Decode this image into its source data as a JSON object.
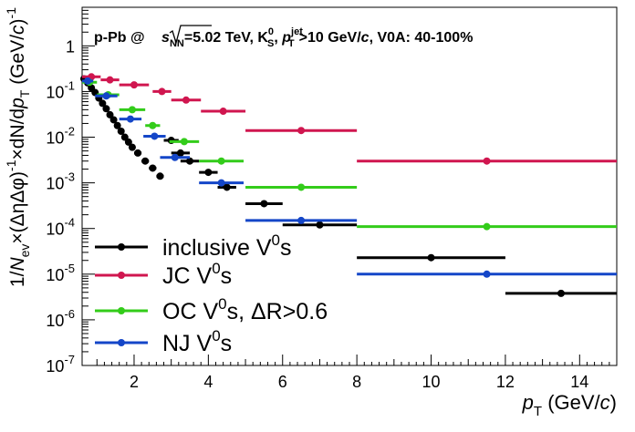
{
  "chart_data": {
    "type": "scatter",
    "title": "",
    "xlabel": "p_T (GeV/c)",
    "ylabel": "1/N_ev×(ΔηΔφ)^-1×dN/dp_T (GeV/c)^-1",
    "xlim": [
      0.6,
      15
    ],
    "ylim": [
      1e-07,
      7
    ],
    "yscale": "log",
    "x_tick_labels": [
      "2",
      "4",
      "6",
      "8",
      "10",
      "12",
      "14"
    ],
    "y_tick_labels": [
      {
        "base": "10",
        "exp": "-7"
      },
      {
        "base": "10",
        "exp": "-6"
      },
      {
        "base": "10",
        "exp": "-5"
      },
      {
        "base": "10",
        "exp": "-4"
      },
      {
        "base": "10",
        "exp": "-3"
      },
      {
        "base": "10",
        "exp": "-2"
      },
      {
        "base": "10",
        "exp": "-1"
      },
      {
        "base": "1",
        "exp": ""
      }
    ],
    "annotation": {
      "prefix": "p-Pb @ ",
      "sqrt_s": "s",
      "sqrt_sub": "NN",
      "energy": "=5.02 TeV, K",
      "k_sup": "0",
      "k_sub": "S",
      "sep": ", ",
      "pt": "p",
      "pt_sup": "jet",
      "pt_sub": "T",
      "cut": ">10 GeV/",
      "c": "c",
      "rest": ", V0A: 40-100%"
    },
    "legend_position": "bottom-left",
    "series": [
      {
        "name": "inclusive V0s",
        "legend": {
          "main": "inclusive V",
          "sup": "0",
          "tail": "s"
        },
        "color": "#000000",
        "points": [
          {
            "x": 0.65,
            "y": 0.19,
            "xerr": 0.05
          },
          {
            "x": 0.75,
            "y": 0.155,
            "xerr": 0.05
          },
          {
            "x": 0.85,
            "y": 0.12,
            "xerr": 0.05
          },
          {
            "x": 0.95,
            "y": 0.095,
            "xerr": 0.05
          },
          {
            "x": 1.05,
            "y": 0.072,
            "xerr": 0.05
          },
          {
            "x": 1.15,
            "y": 0.055,
            "xerr": 0.05
          },
          {
            "x": 1.25,
            "y": 0.042,
            "xerr": 0.05
          },
          {
            "x": 1.35,
            "y": 0.031,
            "xerr": 0.05
          },
          {
            "x": 1.45,
            "y": 0.024,
            "xerr": 0.05
          },
          {
            "x": 1.55,
            "y": 0.018,
            "xerr": 0.05
          },
          {
            "x": 1.65,
            "y": 0.0135,
            "xerr": 0.05
          },
          {
            "x": 1.75,
            "y": 0.01,
            "xerr": 0.05
          },
          {
            "x": 1.85,
            "y": 0.0078,
            "xerr": 0.05
          },
          {
            "x": 1.95,
            "y": 0.006,
            "xerr": 0.05
          },
          {
            "x": 2.1,
            "y": 0.0045,
            "xerr": 0.1
          },
          {
            "x": 2.3,
            "y": 0.003,
            "xerr": 0.1
          },
          {
            "x": 2.5,
            "y": 0.0021,
            "xerr": 0.1
          },
          {
            "x": 2.7,
            "y": 0.0014,
            "xerr": 0.1
          },
          {
            "x": 3.0,
            "y": 0.0085,
            "xerr": 0.2
          },
          {
            "x": 3.25,
            "y": 0.0045,
            "xerr": 0.25
          },
          {
            "x": 3.5,
            "y": 0.003,
            "xerr": 0.25
          },
          {
            "x": 4.0,
            "y": 0.0017,
            "xerr": 0.25
          },
          {
            "x": 4.5,
            "y": 0.0008,
            "xerr": 0.25
          },
          {
            "x": 5.5,
            "y": 0.00035,
            "xerr": 0.5
          },
          {
            "x": 7.0,
            "y": 0.00012,
            "xerr": 1.0
          },
          {
            "x": 10.0,
            "y": 2.3e-05,
            "xerr": 2.0
          },
          {
            "x": 13.5,
            "y": 3.8e-06,
            "xerr": 1.5
          }
        ]
      },
      {
        "name": "JC V0s",
        "legend": {
          "main": "JC V",
          "sup": "0",
          "tail": "s"
        },
        "color": "#d0164f",
        "points": [
          {
            "x": 0.85,
            "y": 0.21,
            "xerr": 0.25
          },
          {
            "x": 1.35,
            "y": 0.18,
            "xerr": 0.25
          },
          {
            "x": 2.0,
            "y": 0.14,
            "xerr": 0.4
          },
          {
            "x": 2.75,
            "y": 0.1,
            "xerr": 0.25
          },
          {
            "x": 3.4,
            "y": 0.065,
            "xerr": 0.4
          },
          {
            "x": 4.4,
            "y": 0.037,
            "xerr": 0.6
          },
          {
            "x": 6.5,
            "y": 0.014,
            "xerr": 1.5
          },
          {
            "x": 11.5,
            "y": 0.003,
            "xerr": 3.5
          }
        ]
      },
      {
        "name": "OC V0s, ΔR>0.6",
        "legend": {
          "main": "OC V",
          "sup": "0",
          "tail": "s, ΔR>0.6"
        },
        "color": "#33cc1a",
        "points": [
          {
            "x": 0.8,
            "y": 0.16,
            "xerr": 0.2
          },
          {
            "x": 1.3,
            "y": 0.085,
            "xerr": 0.3
          },
          {
            "x": 1.95,
            "y": 0.04,
            "xerr": 0.35
          },
          {
            "x": 2.5,
            "y": 0.018,
            "xerr": 0.2
          },
          {
            "x": 3.35,
            "y": 0.008,
            "xerr": 0.4
          },
          {
            "x": 4.35,
            "y": 0.003,
            "xerr": 0.6
          },
          {
            "x": 6.5,
            "y": 0.0008,
            "xerr": 1.5
          },
          {
            "x": 11.5,
            "y": 0.00011,
            "xerr": 3.5
          }
        ]
      },
      {
        "name": "NJ V0s",
        "legend": {
          "main": "NJ V",
          "sup": "0",
          "tail": "s"
        },
        "color": "#1446c8",
        "points": [
          {
            "x": 0.75,
            "y": 0.17,
            "xerr": 0.15
          },
          {
            "x": 1.25,
            "y": 0.08,
            "xerr": 0.3
          },
          {
            "x": 1.9,
            "y": 0.025,
            "xerr": 0.3
          },
          {
            "x": 2.55,
            "y": 0.0105,
            "xerr": 0.3
          },
          {
            "x": 3.1,
            "y": 0.0036,
            "xerr": 0.4
          },
          {
            "x": 4.35,
            "y": 0.001,
            "xerr": 0.6
          },
          {
            "x": 6.5,
            "y": 0.00015,
            "xerr": 1.5
          },
          {
            "x": 11.5,
            "y": 1e-05,
            "xerr": 3.5
          }
        ]
      }
    ]
  }
}
